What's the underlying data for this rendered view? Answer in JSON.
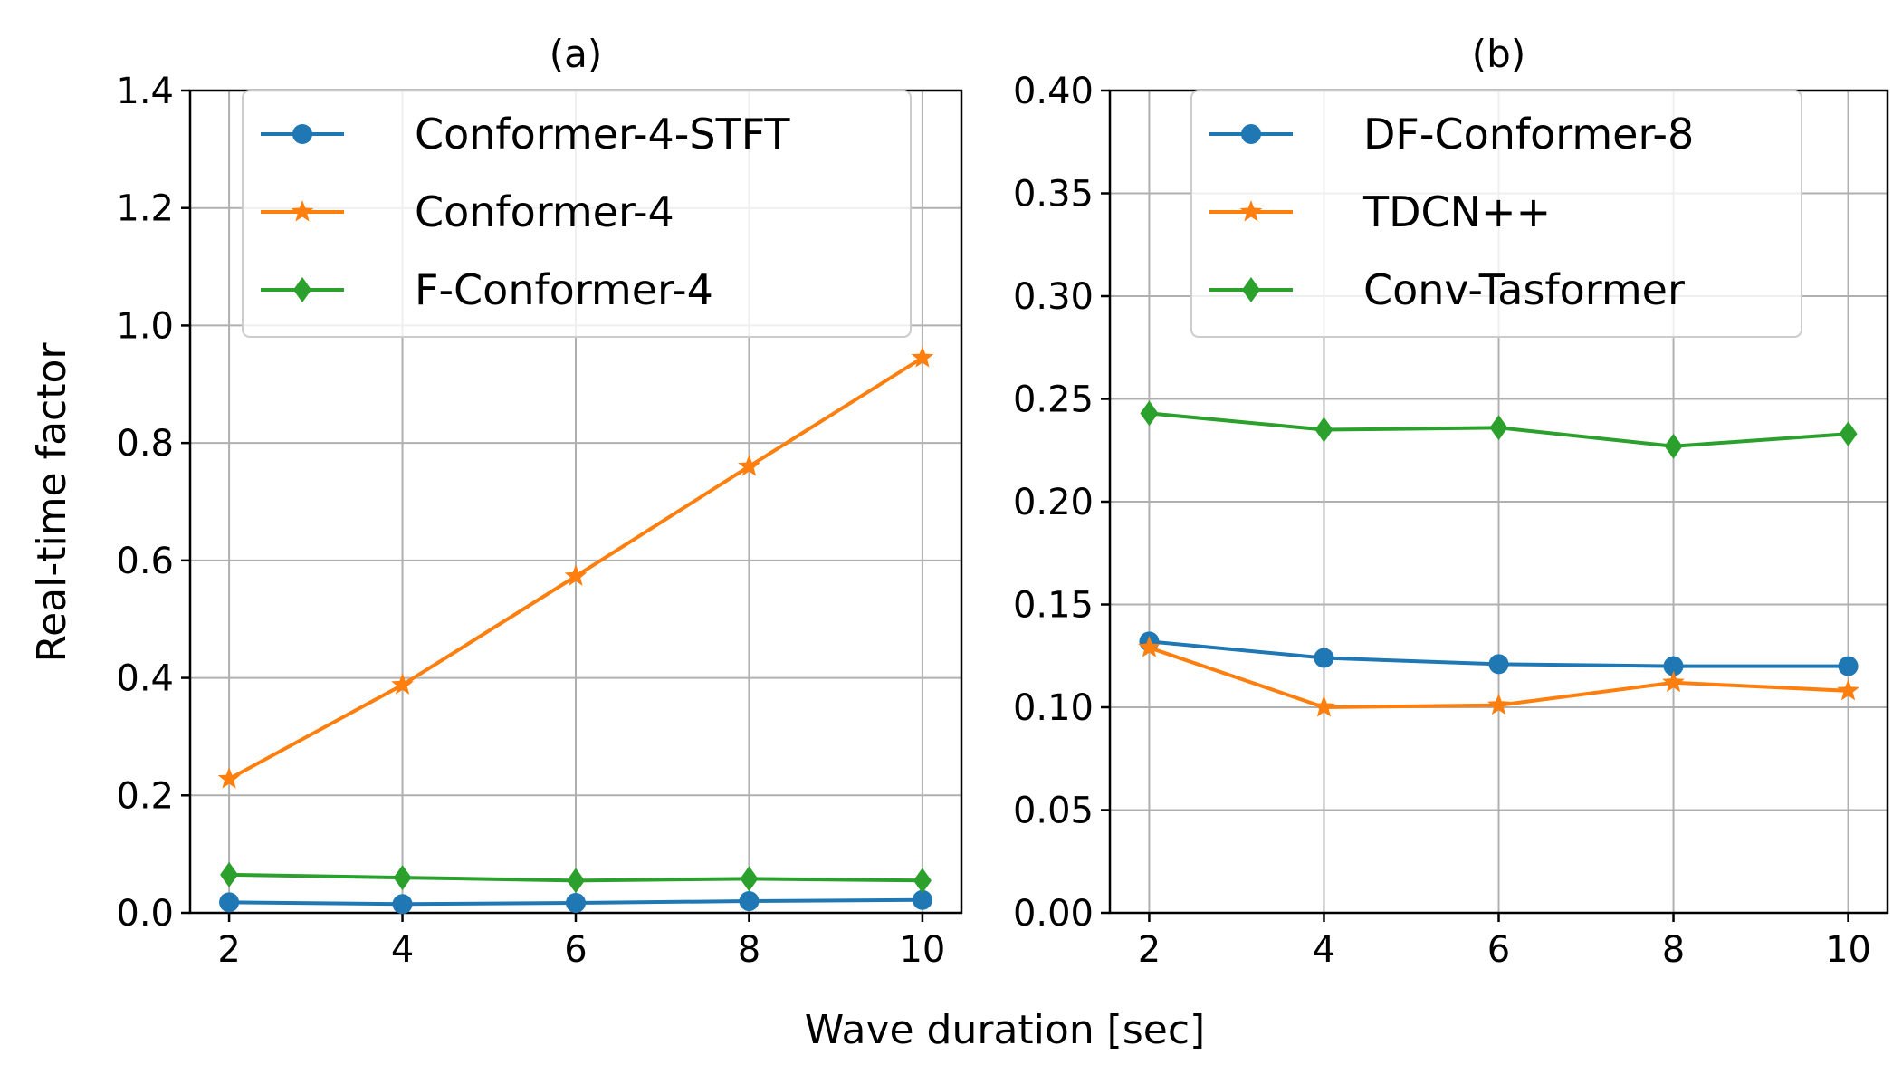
{
  "figure": {
    "xlabel": "Wave duration [sec]",
    "ylabel": "Real-time factor"
  },
  "chart_data": [
    {
      "type": "line",
      "title": "(a)",
      "x": [
        2,
        4,
        6,
        8,
        10
      ],
      "xticks": [
        "2",
        "4",
        "6",
        "8",
        "10"
      ],
      "ylim": [
        0,
        1.4
      ],
      "yticks": [
        "0.0",
        "0.2",
        "0.4",
        "0.6",
        "0.8",
        "1.0",
        "1.2",
        "1.4"
      ],
      "grid": true,
      "legend_position": "top",
      "series": [
        {
          "name": "Conformer-4-STFT",
          "color": "#1f77b4",
          "marker": "circle",
          "values": [
            0.018,
            0.015,
            0.017,
            0.02,
            0.022
          ]
        },
        {
          "name": "Conformer-4",
          "color": "#ff7f0e",
          "marker": "star",
          "values": [
            0.228,
            0.388,
            0.573,
            0.76,
            0.945
          ]
        },
        {
          "name": "F-Conformer-4",
          "color": "#2ca02c",
          "marker": "diamond",
          "values": [
            0.065,
            0.06,
            0.055,
            0.058,
            0.055
          ]
        }
      ]
    },
    {
      "type": "line",
      "title": "(b)",
      "x": [
        2,
        4,
        6,
        8,
        10
      ],
      "xticks": [
        "2",
        "4",
        "6",
        "8",
        "10"
      ],
      "ylim": [
        0,
        0.4
      ],
      "yticks": [
        "0.00",
        "0.05",
        "0.10",
        "0.15",
        "0.20",
        "0.25",
        "0.30",
        "0.35",
        "0.40"
      ],
      "grid": true,
      "legend_position": "top",
      "series": [
        {
          "name": "DF-Conformer-8",
          "color": "#1f77b4",
          "marker": "circle",
          "values": [
            0.132,
            0.124,
            0.121,
            0.12,
            0.12
          ]
        },
        {
          "name": "TDCN++",
          "color": "#ff7f0e",
          "marker": "star",
          "values": [
            0.129,
            0.1,
            0.101,
            0.112,
            0.108
          ]
        },
        {
          "name": "Conv-Tasformer",
          "color": "#2ca02c",
          "marker": "diamond",
          "values": [
            0.243,
            0.235,
            0.236,
            0.227,
            0.233
          ]
        }
      ]
    }
  ]
}
